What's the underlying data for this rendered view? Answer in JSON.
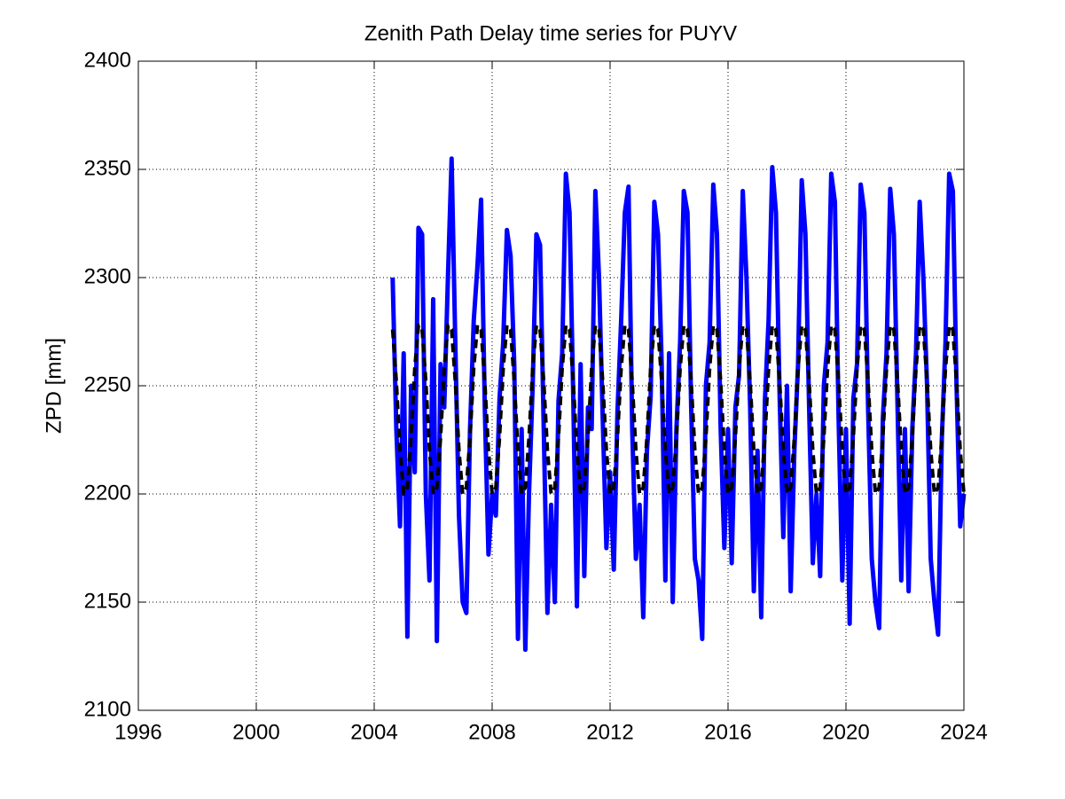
{
  "chart_data": {
    "type": "line",
    "title": "Zenith Path Delay time series for PUYV",
    "ylabel": "ZPD [mm]",
    "xlim": [
      1996,
      2024
    ],
    "xticks": [
      1996,
      2000,
      2004,
      2008,
      2012,
      2016,
      2020,
      2024
    ],
    "ylim": [
      2100,
      2400
    ],
    "yticks": [
      2100,
      2150,
      2200,
      2250,
      2300,
      2350,
      2400
    ],
    "grid": true,
    "x": [
      2004.625,
      2004.75,
      2004.875,
      2005,
      2005.125,
      2005.25,
      2005.375,
      2005.5,
      2005.625,
      2005.75,
      2005.875,
      2006,
      2006.125,
      2006.25,
      2006.375,
      2006.5,
      2006.625,
      2006.75,
      2006.875,
      2007,
      2007.125,
      2007.25,
      2007.375,
      2007.5,
      2007.625,
      2007.75,
      2007.875,
      2008,
      2008.125,
      2008.25,
      2008.375,
      2008.5,
      2008.625,
      2008.75,
      2008.875,
      2009,
      2009.125,
      2009.25,
      2009.375,
      2009.5,
      2009.625,
      2009.75,
      2009.875,
      2010,
      2010.125,
      2010.25,
      2010.375,
      2010.5,
      2010.625,
      2010.75,
      2010.875,
      2011,
      2011.125,
      2011.25,
      2011.375,
      2011.5,
      2011.625,
      2011.75,
      2011.875,
      2012,
      2012.125,
      2012.25,
      2012.375,
      2012.5,
      2012.625,
      2012.75,
      2012.875,
      2013,
      2013.125,
      2013.25,
      2013.375,
      2013.5,
      2013.625,
      2013.75,
      2013.875,
      2014,
      2014.125,
      2014.25,
      2014.375,
      2014.5,
      2014.625,
      2014.75,
      2014.875,
      2015,
      2015.125,
      2015.25,
      2015.375,
      2015.5,
      2015.625,
      2015.75,
      2015.875,
      2016,
      2016.125,
      2016.25,
      2016.375,
      2016.5,
      2016.625,
      2016.75,
      2016.875,
      2017,
      2017.125,
      2017.25,
      2017.375,
      2017.5,
      2017.625,
      2017.75,
      2017.875,
      2018,
      2018.125,
      2018.25,
      2018.375,
      2018.5,
      2018.625,
      2018.75,
      2018.875,
      2019,
      2019.125,
      2019.25,
      2019.375,
      2019.5,
      2019.625,
      2019.75,
      2019.875,
      2020,
      2020.125,
      2020.25,
      2020.375,
      2020.5,
      2020.625,
      2020.75,
      2020.875,
      2021,
      2021.125,
      2021.25,
      2021.375,
      2021.5,
      2021.625,
      2021.75,
      2021.875,
      2022,
      2022.125,
      2022.25,
      2022.375,
      2022.5,
      2022.625,
      2022.75,
      2022.875,
      2023,
      2023.125,
      2023.25,
      2023.375,
      2023.5,
      2023.625,
      2023.75,
      2023.875,
      2024
    ],
    "series": [
      {
        "color": "#0000ff",
        "line_style": "solid",
        "values": [
          2300,
          2230,
          2185,
          2265,
          2134,
          2250,
          2210,
          2323,
          2320,
          2200,
          2160,
          2290,
          2132,
          2260,
          2240,
          2300,
          2355,
          2270,
          2190,
          2150,
          2145,
          2230,
          2280,
          2305,
          2336,
          2240,
          2172,
          2200,
          2190,
          2244,
          2270,
          2322,
          2310,
          2260,
          2133,
          2230,
          2128,
          2200,
          2250,
          2320,
          2315,
          2230,
          2145,
          2195,
          2150,
          2243,
          2265,
          2348,
          2330,
          2245,
          2148,
          2260,
          2162,
          2240,
          2230,
          2340,
          2300,
          2235,
          2175,
          2210,
          2165,
          2238,
          2280,
          2330,
          2342,
          2230,
          2170,
          2195,
          2143,
          2220,
          2245,
          2335,
          2320,
          2260,
          2160,
          2265,
          2150,
          2230,
          2270,
          2340,
          2330,
          2240,
          2170,
          2160,
          2133,
          2250,
          2270,
          2343,
          2320,
          2230,
          2175,
          2230,
          2168,
          2240,
          2255,
          2340,
          2300,
          2240,
          2155,
          2220,
          2143,
          2243,
          2280,
          2351,
          2330,
          2245,
          2180,
          2250,
          2155,
          2220,
          2260,
          2345,
          2320,
          2240,
          2168,
          2200,
          2162,
          2250,
          2270,
          2348,
          2335,
          2235,
          2160,
          2230,
          2140,
          2244,
          2260,
          2343,
          2330,
          2240,
          2170,
          2150,
          2138,
          2235,
          2265,
          2341,
          2320,
          2240,
          2160,
          2230,
          2155,
          2230,
          2265,
          2335,
          2300,
          2250,
          2170,
          2150,
          2135,
          2225,
          2270,
          2348,
          2340,
          2250,
          2185,
          2200
        ]
      },
      {
        "color": "#000000",
        "line_style": "dashed",
        "values": [
          2276,
          2252,
          2220,
          2200,
          2203,
          2226,
          2258,
          2278,
          2276,
          2252,
          2220,
          2200,
          2203,
          2226,
          2258,
          2278,
          2276,
          2252,
          2220,
          2200,
          2203,
          2226,
          2258,
          2278,
          2276,
          2252,
          2220,
          2200,
          2203,
          2226,
          2258,
          2278,
          2276,
          2252,
          2220,
          2200,
          2203,
          2226,
          2258,
          2278,
          2276,
          2252,
          2220,
          2200,
          2203,
          2226,
          2258,
          2278,
          2276,
          2252,
          2220,
          2200,
          2203,
          2226,
          2258,
          2278,
          2276,
          2252,
          2220,
          2200,
          2203,
          2226,
          2258,
          2278,
          2276,
          2252,
          2220,
          2200,
          2203,
          2226,
          2258,
          2278,
          2276,
          2252,
          2220,
          2200,
          2203,
          2226,
          2258,
          2278,
          2276,
          2252,
          2220,
          2200,
          2203,
          2226,
          2258,
          2278,
          2276,
          2252,
          2220,
          2200,
          2203,
          2226,
          2258,
          2278,
          2276,
          2252,
          2220,
          2200,
          2203,
          2226,
          2258,
          2278,
          2276,
          2252,
          2220,
          2200,
          2203,
          2226,
          2258,
          2278,
          2276,
          2252,
          2220,
          2200,
          2203,
          2226,
          2258,
          2278,
          2276,
          2252,
          2220,
          2200,
          2203,
          2226,
          2258,
          2278,
          2276,
          2252,
          2220,
          2200,
          2203,
          2226,
          2258,
          2278,
          2276,
          2252,
          2220,
          2200,
          2203,
          2226,
          2258,
          2278,
          2276,
          2252,
          2220,
          2200,
          2203,
          2226,
          2258,
          2278,
          2276,
          2252,
          2220,
          2200
        ]
      }
    ]
  }
}
